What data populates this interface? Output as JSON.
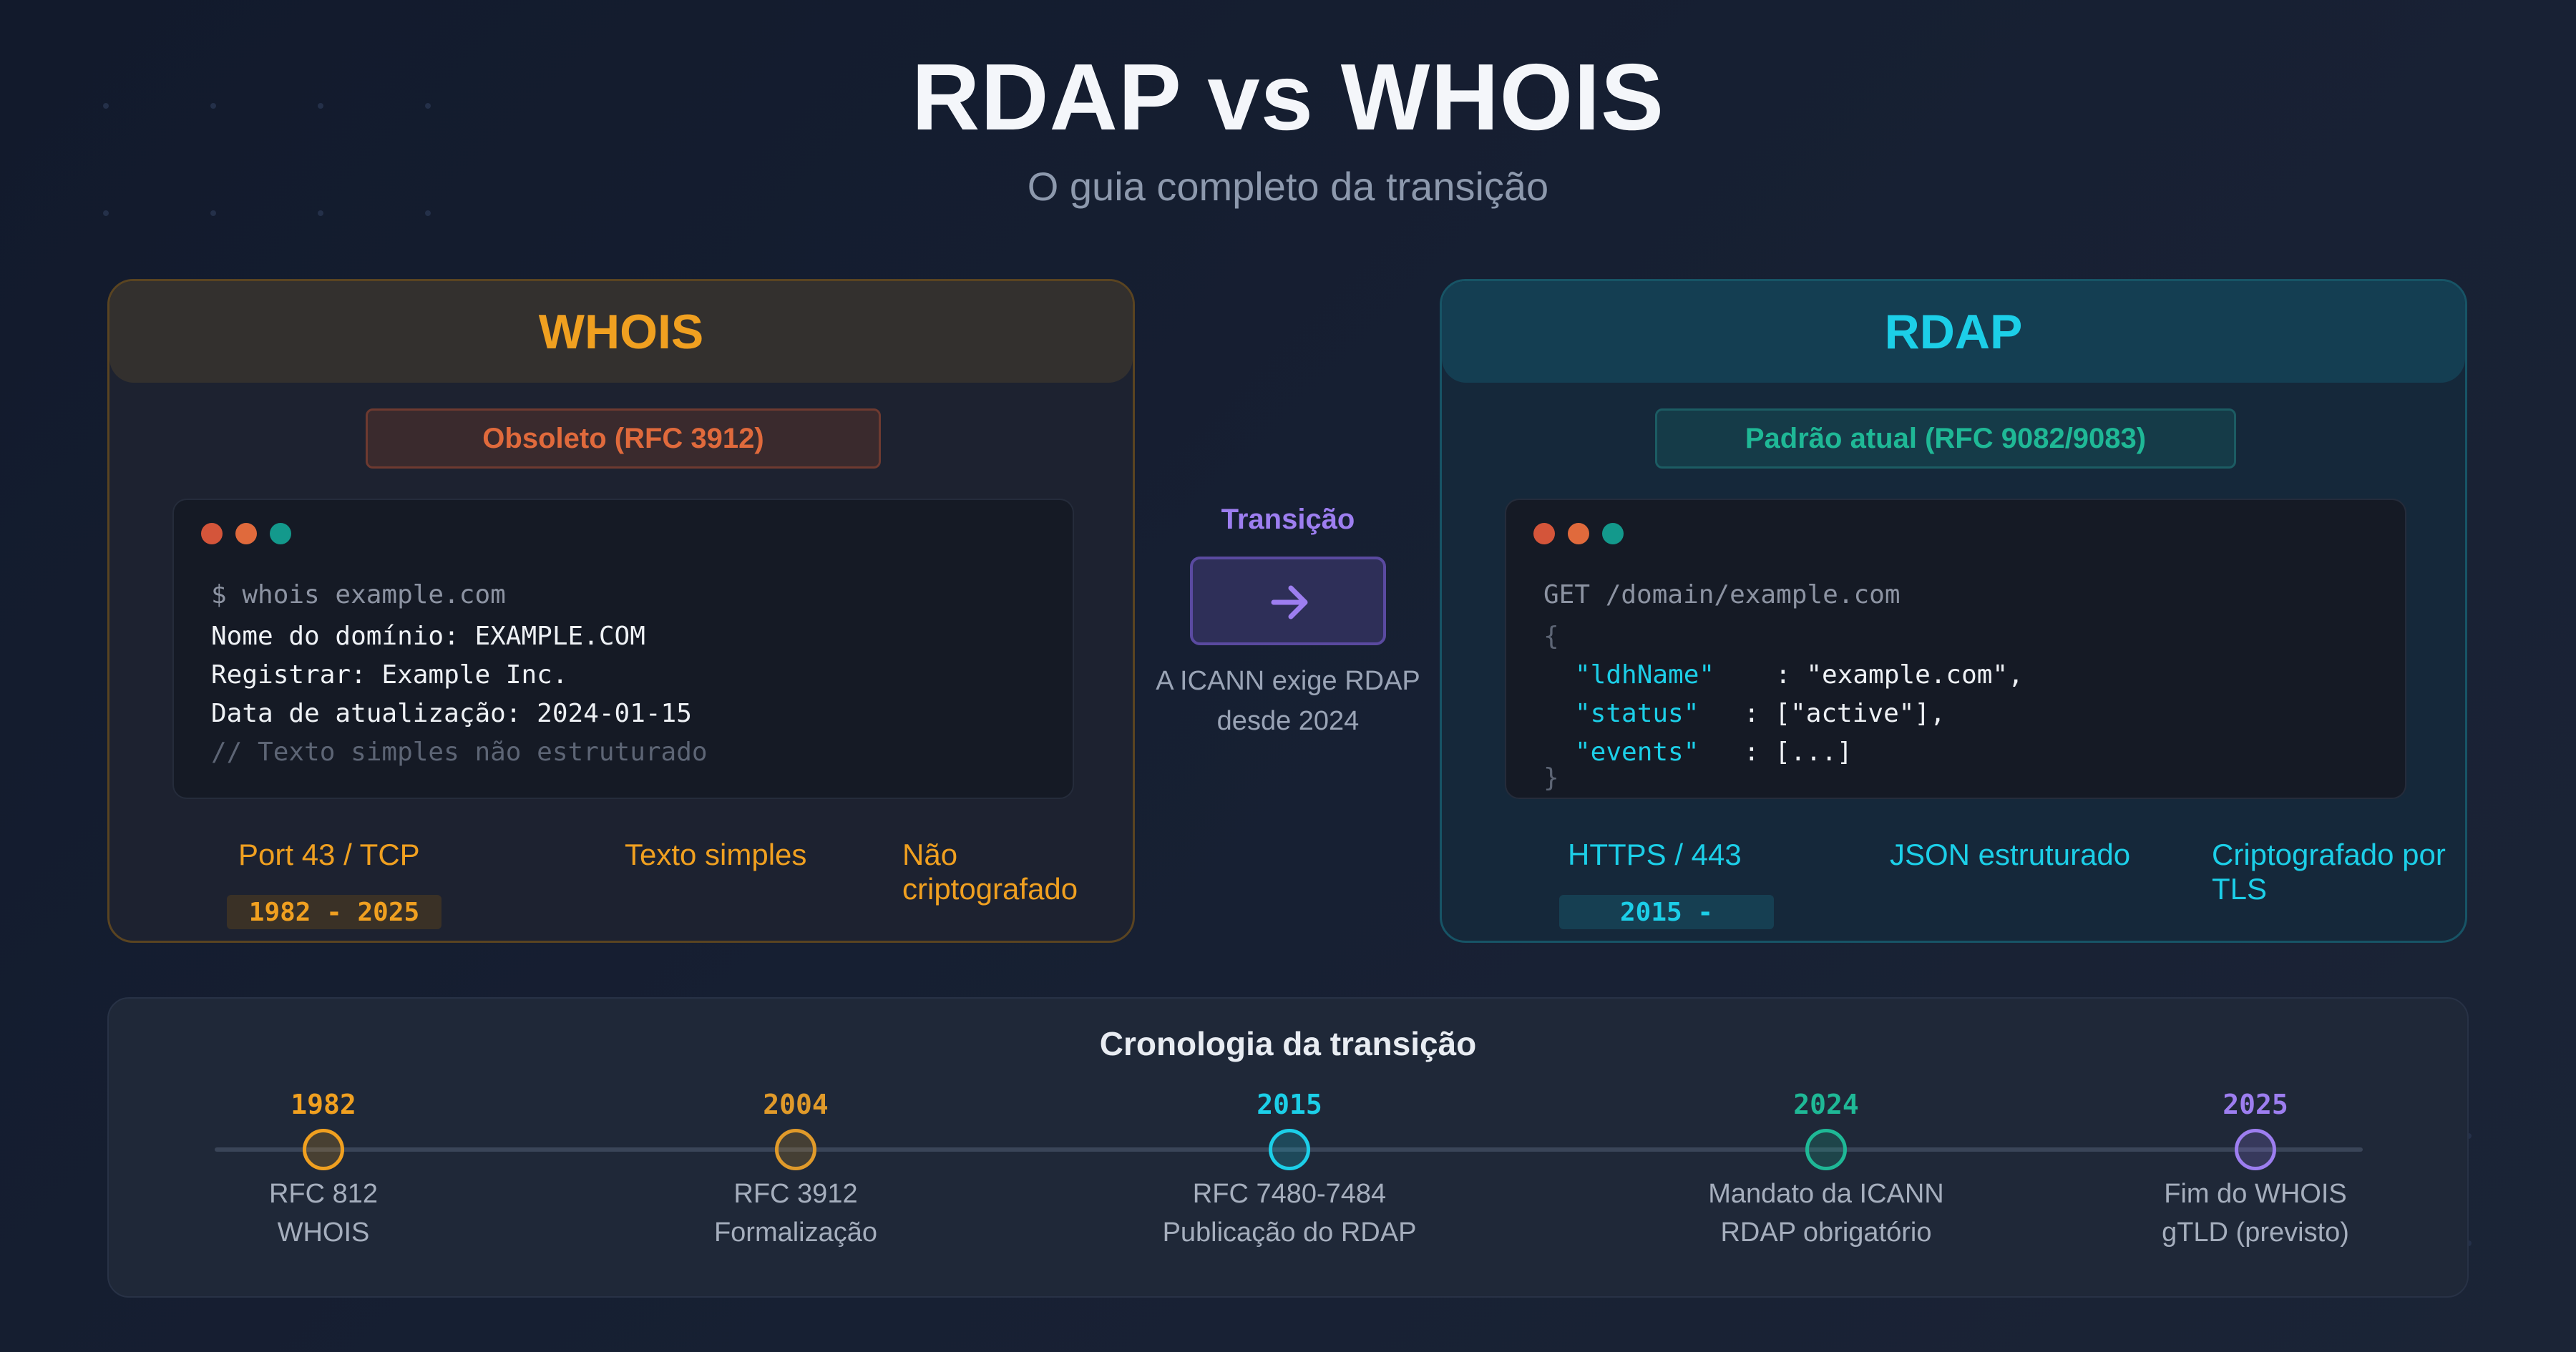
{
  "header": {
    "title": "RDAP vs WHOIS",
    "subtitle": "O guia completo da transição"
  },
  "whois": {
    "title": "WHOIS",
    "badge": "Obsoleto (RFC 3912)",
    "terminal": {
      "lines": [
        "$ whois example.com",
        "Nome do domínio: EXAMPLE.COM",
        "Registrar: Example Inc.",
        "Data de atualização: 2024-01-15",
        "// Texto simples não estruturado"
      ]
    },
    "features": [
      "Port 43 / TCP",
      "Texto simples",
      "Não criptografado"
    ],
    "years": "1982 - 2025"
  },
  "rdap": {
    "title": "RDAP",
    "badge": "Padrão atual (RFC 9082/9083)",
    "terminal": {
      "request": "GET /domain/example.com",
      "open_brace": "{",
      "fields": [
        {
          "key": "\"ldhName\"",
          "value": ": \"example.com\","
        },
        {
          "key": "\"status\"",
          "value": ": [\"active\"],"
        },
        {
          "key": "\"events\"",
          "value": ": [...]"
        }
      ],
      "close_brace": "}"
    },
    "features": [
      "HTTPS / 443",
      "JSON estruturado",
      "Criptografado por TLS"
    ],
    "years": "2015 -"
  },
  "transition": {
    "label": "Transição",
    "icon": "arrow-right-icon",
    "note_line1": "A ICANN exige RDAP",
    "note_line2": "desde 2024"
  },
  "timeline": {
    "title": "Cronologia da transição",
    "events": [
      {
        "year": "1982",
        "line1": "RFC 812",
        "line2": "WHOIS",
        "color": "#f0a020"
      },
      {
        "year": "2004",
        "line1": "RFC 3912",
        "line2": "Formalização",
        "color": "#e09a2a"
      },
      {
        "year": "2015",
        "line1": "RFC 7480-7484",
        "line2": "Publicação do RDAP",
        "color": "#1ccfe8"
      },
      {
        "year": "2024",
        "line1": "Mandato da ICANN",
        "line2": "RDAP obrigatório",
        "color": "#1fb896"
      },
      {
        "year": "2025",
        "line1": "Fim do WHOIS",
        "line2": "gTLD (previsto)",
        "color": "#9d7ef0"
      }
    ]
  },
  "colors": {
    "whois_accent": "#f0a020",
    "rdap_accent": "#1ccfe8",
    "transition_accent": "#9d7ef0",
    "terminal_dot_red": "#d4553a",
    "terminal_dot_orange": "#e06a3c",
    "terminal_dot_teal": "#13998c"
  }
}
